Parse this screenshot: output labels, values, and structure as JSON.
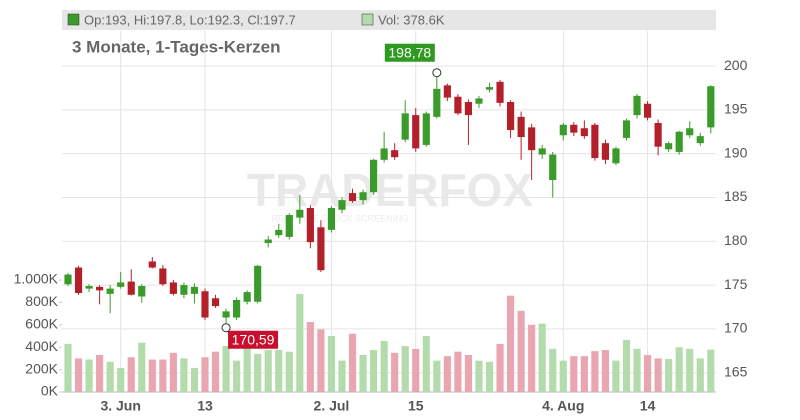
{
  "chart_data": {
    "type": "candlestick",
    "header": {
      "ohlc": "Op:193, Hi:197.8, Lo:192.3, Cl:197.7",
      "volume": "Vol: 378.6K"
    },
    "subtitle": "3 Monate, 1-Tages-Kerzen",
    "watermark": {
      "title": "TRADERFOX",
      "tagline": "REAL-TIME STOCK SCREENING"
    },
    "categories": [
      null,
      null,
      null,
      null,
      null,
      "3. Jun",
      null,
      null,
      null,
      null,
      null,
      null,
      null,
      "13",
      null,
      null,
      null,
      null,
      null,
      null,
      null,
      null,
      null,
      null,
      null,
      "2. Jul",
      null,
      null,
      null,
      null,
      null,
      null,
      null,
      "15",
      null,
      null,
      null,
      null,
      null,
      null,
      null,
      null,
      null,
      null,
      null,
      null,
      null,
      "4. Aug",
      null,
      null,
      null,
      null,
      null,
      null,
      null,
      "14",
      null,
      null,
      null,
      null,
      null,
      null
    ],
    "open": [
      175.1,
      177.0,
      174.6,
      174.8,
      174.0,
      174.8,
      175.4,
      173.7,
      177.7,
      176.9,
      175.3,
      173.9,
      174.0,
      174.3,
      173.5,
      171.3,
      171.3,
      173.1,
      173.1,
      179.8,
      180.7,
      180.5,
      182.7,
      183.8,
      181.6,
      181.3,
      183.6,
      185.5,
      184.7,
      185.6,
      189.3,
      190.4,
      191.6,
      194.4,
      191.0,
      194.2,
      197.8,
      196.5,
      195.9,
      195.7,
      197.3,
      198.2,
      195.9,
      194.2,
      193.0,
      189.9,
      187.0,
      192.1,
      193.3,
      192.9,
      193.3,
      191.2,
      188.9,
      191.8,
      194.4,
      195.7,
      193.5,
      190.5,
      190.2,
      192.1,
      191.2,
      193.0
    ],
    "high": [
      176.4,
      177.2,
      175.1,
      175.0,
      175.0,
      176.5,
      176.8,
      175.1,
      178.2,
      177.3,
      175.6,
      175.3,
      175.2,
      174.6,
      173.9,
      172.3,
      173.6,
      174.4,
      177.3,
      180.6,
      182.0,
      183.2,
      185.3,
      184.1,
      182.4,
      184.0,
      185.0,
      186.0,
      185.9,
      189.4,
      192.5,
      191.2,
      196.1,
      195.2,
      194.8,
      198.78,
      198.0,
      196.8,
      196.2,
      196.6,
      198.1,
      198.4,
      196.1,
      194.8,
      193.4,
      191.0,
      190.2,
      193.5,
      193.6,
      193.8,
      193.5,
      191.6,
      190.8,
      194.0,
      196.8,
      196.0,
      193.9,
      191.4,
      192.6,
      193.7,
      192.4,
      197.8
    ],
    "low": [
      174.9,
      173.9,
      174.2,
      172.8,
      171.8,
      174.6,
      173.8,
      173.0,
      176.9,
      174.9,
      173.8,
      173.5,
      172.9,
      171.0,
      172.4,
      170.59,
      171.0,
      172.8,
      172.9,
      179.3,
      180.4,
      180.2,
      182.0,
      179.2,
      176.5,
      181.0,
      183.2,
      184.4,
      184.2,
      185.3,
      189.0,
      189.3,
      191.3,
      190.2,
      190.8,
      194.0,
      196.0,
      194.4,
      191.0,
      195.2,
      197.0,
      195.4,
      191.8,
      189.3,
      187.0,
      189.4,
      185.0,
      191.5,
      192.0,
      191.7,
      189.2,
      188.8,
      188.7,
      191.5,
      194.0,
      193.8,
      189.8,
      190.2,
      189.9,
      191.8,
      190.9,
      192.3
    ],
    "close": [
      176.2,
      174.1,
      174.9,
      174.4,
      174.6,
      175.3,
      173.9,
      174.9,
      177.0,
      175.1,
      174.0,
      175.0,
      174.8,
      171.3,
      172.6,
      172.0,
      173.3,
      174.2,
      177.2,
      180.2,
      181.3,
      183.0,
      183.6,
      179.9,
      176.7,
      183.8,
      184.7,
      184.6,
      185.6,
      189.3,
      190.6,
      189.6,
      194.6,
      190.6,
      194.6,
      197.4,
      196.4,
      194.6,
      194.4,
      196.3,
      197.6,
      195.8,
      192.7,
      191.9,
      190.4,
      190.6,
      189.9,
      193.3,
      192.4,
      192.0,
      189.5,
      189.3,
      190.6,
      193.8,
      196.6,
      194.1,
      190.8,
      191.2,
      192.5,
      192.9,
      192.0,
      197.7
    ],
    "up_color": "#3a9a2a",
    "down_color": "#b4202a",
    "ylim": [
      162.8,
      204
    ],
    "yticks": [
      165,
      170,
      175,
      180,
      185,
      190,
      195,
      200
    ],
    "grid": true,
    "volume": {
      "values": [
        430,
        300,
        290,
        330,
        270,
        215,
        310,
        440,
        290,
        290,
        350,
        300,
        215,
        310,
        360,
        410,
        280,
        440,
        340,
        375,
        375,
        360,
        875,
        625,
        560,
        500,
        280,
        520,
        330,
        375,
        455,
        350,
        410,
        385,
        500,
        280,
        320,
        360,
        330,
        280,
        270,
        430,
        860,
        725,
        600,
        610,
        385,
        280,
        320,
        320,
        365,
        375,
        280,
        465,
        385,
        330,
        300,
        295,
        400,
        385,
        300,
        378.6
      ],
      "up_color": "#b3dbab",
      "down_color": "#eaa6b0",
      "ylim": [
        0,
        3223
      ],
      "yticks": [
        {
          "value": 0,
          "label": "0K"
        },
        {
          "value": 200,
          "label": "200K"
        },
        {
          "value": 400,
          "label": "400K"
        },
        {
          "value": 600,
          "label": "600K"
        },
        {
          "value": 800,
          "label": "800K"
        },
        {
          "value": 1000,
          "label": "1.000K"
        }
      ]
    },
    "annotations": [
      {
        "value": 198.78,
        "label": "198,78",
        "color": "#2e9a1f",
        "kind": "high"
      },
      {
        "value": 170.59,
        "label": "170,59",
        "color": "#c8102e",
        "kind": "low"
      }
    ]
  }
}
